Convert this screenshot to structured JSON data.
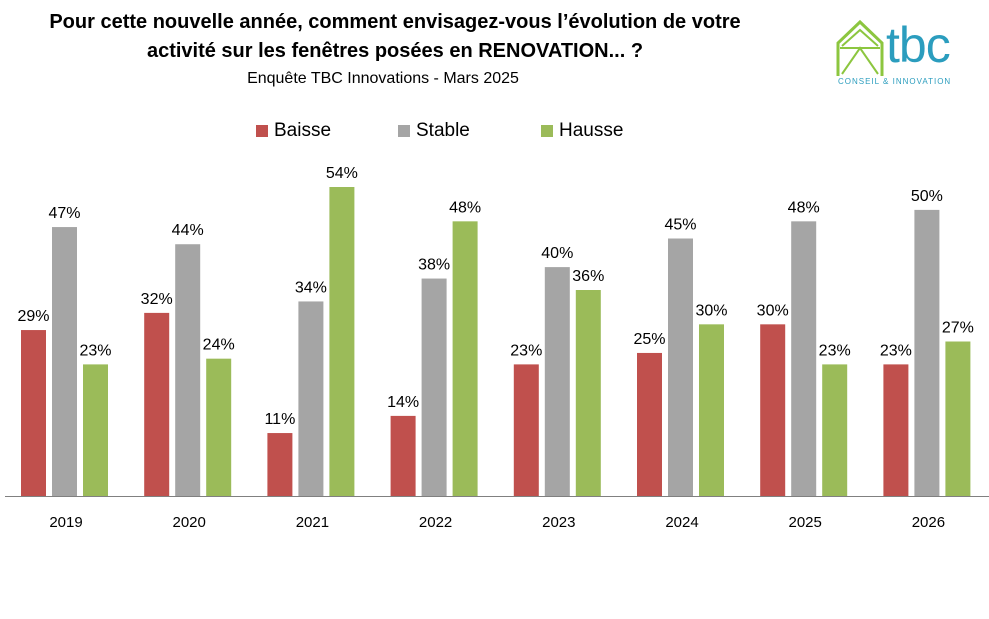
{
  "header": {
    "title_line1": "Pour cette nouvelle année, comment envisagez-vous l’évolution de votre",
    "title_line2": "activité sur les fenêtres posées en RENOVATION... ?",
    "subtitle": "Enquête TBC Innovations - Mars 2025"
  },
  "logo": {
    "text": "tbc",
    "tagline": "CONSEIL & INNOVATION",
    "color": "#2b9dbe",
    "roof_color": "#8cc63f"
  },
  "chart_data": {
    "type": "bar",
    "title": "Pour cette nouvelle année, comment envisagez-vous l’évolution de votre activité sur les fenêtres posées en RENOVATION... ?",
    "subtitle": "Enquête TBC Innovations - Mars 2025",
    "categories": [
      "2019",
      "2020",
      "2021",
      "2022",
      "2023",
      "2024",
      "2025",
      "2026"
    ],
    "series": [
      {
        "name": "Baisse",
        "color": "#c0504d",
        "values": [
          29,
          32,
          11,
          14,
          23,
          25,
          30,
          23
        ],
        "labels": [
          "29%",
          "32%",
          "11%",
          "14%",
          "23%",
          "25%",
          "30%",
          "23%"
        ]
      },
      {
        "name": "Stable",
        "color": "#a5a5a5",
        "values": [
          47,
          44,
          34,
          38,
          40,
          45,
          48,
          50
        ],
        "labels": [
          "47%",
          "44%",
          "34%",
          "38%",
          "40%",
          "45%",
          "48%",
          "50%"
        ]
      },
      {
        "name": "Hausse",
        "color": "#9bbb59",
        "values": [
          23,
          24,
          54,
          48,
          36,
          30,
          23,
          27
        ],
        "labels": [
          "23%",
          "24%",
          "54%",
          "48%",
          "36%",
          "30%",
          "23%",
          "27%"
        ]
      }
    ],
    "ylim": [
      0,
      54
    ],
    "value_unit": "%",
    "legend_position": "top",
    "grid": false
  }
}
